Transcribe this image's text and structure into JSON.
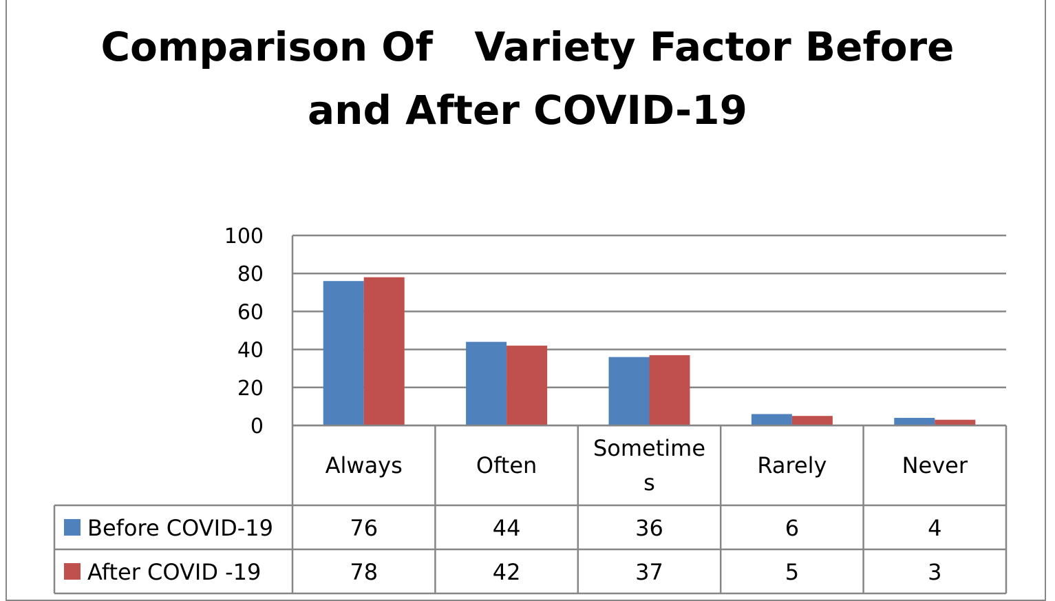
{
  "chart_data": {
    "type": "bar",
    "title_lines": [
      "Comparison Of   Variety Factor Before",
      "and After COVID-19"
    ],
    "categories": [
      [
        "Always"
      ],
      [
        "Often"
      ],
      [
        "Sometime",
        "s"
      ],
      [
        "Rarely"
      ],
      [
        "Never"
      ]
    ],
    "series": [
      {
        "name": "Before COVID-19",
        "color": "#4F81BD",
        "values": [
          76,
          44,
          36,
          6,
          4
        ]
      },
      {
        "name": "After COVID -19",
        "color": "#C0504D",
        "values": [
          78,
          42,
          37,
          5,
          3
        ]
      }
    ],
    "ylim": [
      0,
      100
    ],
    "yticks": [
      0,
      20,
      40,
      60,
      80,
      100
    ],
    "grid": true,
    "legend": "data-table"
  }
}
